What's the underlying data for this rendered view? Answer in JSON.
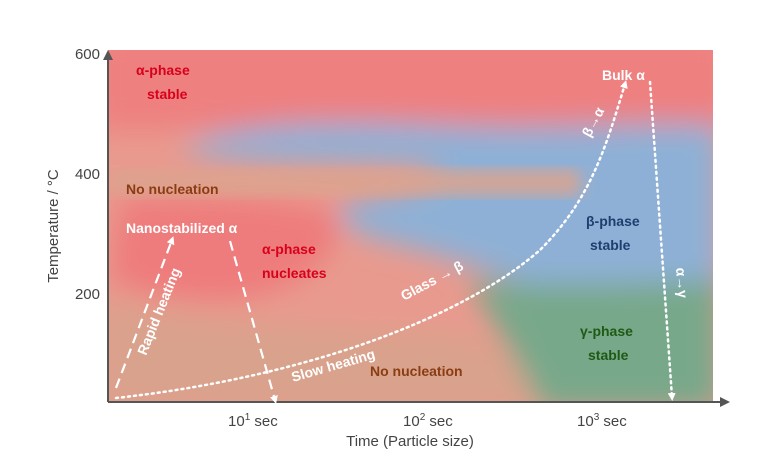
{
  "colors": {
    "alpha_red": "#ef8080",
    "beta_blue": "#8eb0d6",
    "gamma_green": "#78a88a",
    "tan": "#d9a28c",
    "axis": "#555555",
    "label_red": "#d9001b",
    "label_brown": "#8a3d12",
    "label_navy": "#1d3f6e",
    "label_green": "#1e5a14"
  },
  "axes": {
    "ylabel": "Temperature / °C",
    "xlabel": "Time (Particle size)",
    "yticks": [
      "600",
      "400",
      "200"
    ],
    "xticks": [
      {
        "base": "10",
        "exp": "1",
        "unit": "sec"
      },
      {
        "base": "10",
        "exp": "2",
        "unit": "sec"
      },
      {
        "base": "10",
        "exp": "3",
        "unit": "sec"
      }
    ]
  },
  "regions": {
    "alpha_stable": [
      "α-phase",
      "stable"
    ],
    "no_nucleation_top": "No nucleation",
    "nanostabilized": "Nanostabilized α",
    "alpha_nucleates": [
      "α-phase",
      "nucleates"
    ],
    "beta_stable": [
      "β-phase",
      "stable"
    ],
    "gamma_stable": [
      "γ-phase",
      "stable"
    ],
    "no_nucleation_bottom": "No nucleation",
    "bulk": "Bulk α"
  },
  "arrows": {
    "rapid_heating": "Rapid heating",
    "slow_heating": "Slow heating",
    "glass_beta": "Glass → β",
    "beta_alpha": "β→α",
    "alpha_gamma": "α→γ"
  }
}
